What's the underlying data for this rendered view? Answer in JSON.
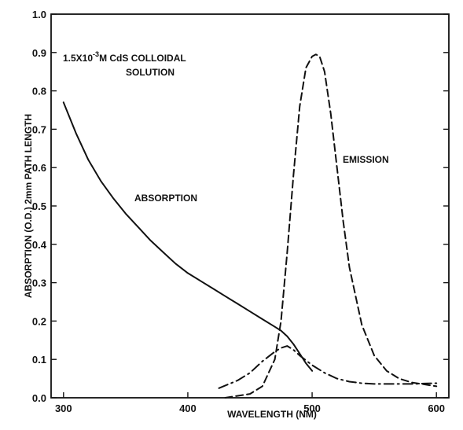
{
  "chart_data": {
    "type": "line",
    "title": "",
    "xlabel": "WAVELENGTH (NM)",
    "ylabel": "ABSORPTION (O.D.) 2mm PATH LENGTH",
    "xlim": [
      290,
      610
    ],
    "ylim": [
      0.0,
      1.0
    ],
    "x_ticks": [
      300,
      400,
      500,
      600
    ],
    "y_ticks": [
      "0.0",
      "0.1",
      "0.2",
      "0.3",
      "0.4",
      "0.5",
      "0.6",
      "0.7",
      "0.8",
      "0.9",
      "1.0"
    ],
    "grid": false,
    "annotations": [
      {
        "text": "1.5X10",
        "sup": "-3",
        "rest": "M  CdS COLLOIDAL",
        "line2": "SOLUTION"
      },
      {
        "text": "ABSORPTION"
      },
      {
        "text": "EMISSION"
      }
    ],
    "series": [
      {
        "name": "ABSORPTION",
        "style": "solid",
        "x": [
          300,
          310,
          320,
          330,
          340,
          350,
          360,
          370,
          380,
          390,
          400,
          410,
          420,
          430,
          440,
          450,
          460,
          470,
          475,
          480,
          485,
          490,
          495,
          500
        ],
        "y": [
          0.77,
          0.69,
          0.62,
          0.565,
          0.52,
          0.48,
          0.445,
          0.41,
          0.38,
          0.35,
          0.325,
          0.305,
          0.285,
          0.265,
          0.245,
          0.225,
          0.205,
          0.185,
          0.175,
          0.16,
          0.14,
          0.115,
          0.09,
          0.07
        ]
      },
      {
        "name": "EMISSION",
        "style": "dashed",
        "x": [
          430,
          450,
          460,
          470,
          475,
          480,
          485,
          490,
          495,
          500,
          503,
          506,
          510,
          515,
          520,
          525,
          530,
          540,
          550,
          560,
          570,
          580,
          590,
          600
        ],
        "y": [
          0.0,
          0.01,
          0.03,
          0.1,
          0.2,
          0.38,
          0.58,
          0.76,
          0.86,
          0.89,
          0.895,
          0.89,
          0.85,
          0.74,
          0.6,
          0.46,
          0.34,
          0.19,
          0.11,
          0.07,
          0.05,
          0.04,
          0.035,
          0.03
        ]
      },
      {
        "name": "",
        "style": "dash-dot",
        "x": [
          425,
          440,
          450,
          460,
          470,
          475,
          480,
          485,
          490,
          500,
          510,
          520,
          530,
          540,
          550,
          560,
          570,
          580,
          590,
          600
        ],
        "y": [
          0.025,
          0.045,
          0.065,
          0.095,
          0.12,
          0.13,
          0.135,
          0.125,
          0.11,
          0.085,
          0.065,
          0.05,
          0.042,
          0.038,
          0.036,
          0.036,
          0.036,
          0.036,
          0.037,
          0.038
        ]
      }
    ]
  }
}
